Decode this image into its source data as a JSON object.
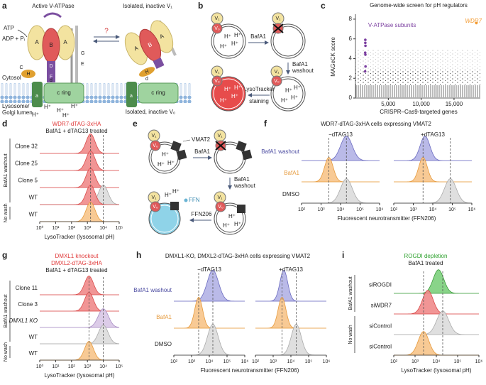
{
  "panels": {
    "a": {
      "label": "a",
      "title_active": "Active V-ATPase",
      "title_isolated": "Isolated, inactive V₁",
      "atp": "ATP",
      "adp": "ADP + Pᵢ",
      "question": "?",
      "subunits": [
        "A",
        "B",
        "A",
        "H",
        "D",
        "F",
        "C",
        "G",
        "E",
        "d",
        "a"
      ],
      "c_ring": "c ring",
      "cytosol": "Cytosol",
      "lumen": [
        "Lysosome/",
        "Golgi lumen"
      ],
      "proton": "H⁺",
      "isolated_v0": "Isolated, inactive V₀"
    },
    "b": {
      "label": "b",
      "v1": "V₁",
      "v0": "V₀",
      "proton": "H⁺",
      "step1": "BafA1",
      "step2": [
        "BafA1",
        "washout"
      ],
      "step3": [
        "LysoTracker",
        "staining"
      ]
    },
    "c": {
      "label": "c",
      "type": "scatter",
      "title": "Genome-wide screen for pH regulators",
      "ylabel": "MAGeCK score",
      "xlabel": "CRISPR–Cas9-targeted genes",
      "xlim": [
        0,
        19000
      ],
      "ylim": [
        0,
        8.5
      ],
      "yticks": [
        0,
        2,
        4,
        6,
        8
      ],
      "xticks": [
        {
          "value": 5000,
          "label": "5,000"
        },
        {
          "value": 10000,
          "label": "10,000"
        },
        {
          "value": 15000,
          "label": "15,000"
        }
      ],
      "series": [
        {
          "name": "V-ATPase subunits",
          "color": "#7b3fa0",
          "x": [
            1500,
            1500,
            1520,
            1480,
            1510,
            1530,
            1470
          ],
          "values": [
            5.9,
            5.6,
            5.3,
            4.6,
            4.4,
            3.2,
            2.7
          ]
        },
        {
          "name": "WDR7",
          "color": "#f39c34",
          "x": [
            18400
          ],
          "values": [
            7.6
          ]
        }
      ]
    },
    "d": {
      "label": "d",
      "title": [
        "WDR7-dTAG-3xHA",
        "BafA1 + dTAG13 treated"
      ],
      "rows": [
        "Clone 32",
        "Clone 25",
        "Clone 5",
        "WT",
        "WT"
      ],
      "groups": [
        "BafA1 washout",
        "No wash"
      ],
      "xlabel": "LysoTracker (lysosomal pH)",
      "xlim": [
        1,
        100000
      ],
      "xticks": [
        {
          "value": 1,
          "label": "10⁰"
        },
        {
          "value": 10,
          "label": "10¹"
        },
        {
          "value": 100,
          "label": "10²"
        },
        {
          "value": 1000,
          "label": "10³"
        },
        {
          "value": 10000,
          "label": "10⁴"
        },
        {
          "value": 100000,
          "label": "10⁵"
        }
      ]
    },
    "e": {
      "label": "e",
      "v1": "V₁",
      "v0": "V₀",
      "vmat2": "VMAT2",
      "step1": "BafA1",
      "step2": [
        "BafA1",
        "washout"
      ],
      "ffn206": "FFN206",
      "ffn": "FFN",
      "proton": "H⁺"
    },
    "f": {
      "label": "f",
      "title": "WDR7-dTAG-3xHA cells expressing VMAT2",
      "conditions": [
        "−dTAG13",
        "+dTAG13"
      ],
      "rows": [
        "BafA1 washout",
        "BafA1",
        "DMSO"
      ],
      "xlabel": "Fluorescent neurotransmitter (FFN206)",
      "xlim": [
        100,
        1000000
      ],
      "xticks": [
        {
          "value": 100,
          "label": "10²"
        },
        {
          "value": 1000,
          "label": "10³"
        },
        {
          "value": 10000,
          "label": "10⁴"
        },
        {
          "value": 100000,
          "label": "10⁵"
        },
        {
          "value": 1000000,
          "label": "10⁶"
        }
      ]
    },
    "g": {
      "label": "g",
      "title": [
        "DMXL1 knockout",
        "DMXL2-dTAG-3xHA",
        "BafA1 + dTAG13 treated"
      ],
      "rows": [
        "Clone 11",
        "Clone 3",
        "DMXL1 KO",
        "WT",
        "WT"
      ],
      "groups": [
        "BafA1 washout",
        "No wash"
      ],
      "xlabel": "LysoTracker (lysosomal pH)",
      "xlim": [
        1,
        100000
      ],
      "xticks": [
        {
          "value": 1,
          "label": "10⁰"
        },
        {
          "value": 10,
          "label": "10¹"
        },
        {
          "value": 100,
          "label": "10²"
        },
        {
          "value": 1000,
          "label": "10³"
        },
        {
          "value": 10000,
          "label": "10⁴"
        },
        {
          "value": 100000,
          "label": "10⁵"
        }
      ]
    },
    "h": {
      "label": "h",
      "title": "DMXL1-KO, DMXL2-dTAG-3xHA cells expressing VMAT2",
      "conditions": [
        "−dTAG13",
        "+dTAG13"
      ],
      "rows": [
        "BafA1 washout",
        "BafA1",
        "DMSO"
      ],
      "xlabel": "Fluorescent neurotransmitter (FFN206)",
      "xlim": [
        100,
        1000000
      ],
      "xticks": [
        {
          "value": 100,
          "label": "10²"
        },
        {
          "value": 1000,
          "label": "10³"
        },
        {
          "value": 10000,
          "label": "10⁴"
        },
        {
          "value": 100000,
          "label": "10⁵"
        },
        {
          "value": 1000000,
          "label": "10⁶"
        }
      ]
    },
    "i": {
      "label": "i",
      "title": [
        "ROGDI depletion",
        "BafA1 treated"
      ],
      "rows": [
        "siROGDI",
        "siWDR7",
        "siControl",
        "siControl"
      ],
      "groups": [
        "BafA1 washout",
        "No wash"
      ],
      "xlabel": "LysoTracker (lysosomal pH)",
      "xlim": [
        100,
        1000000
      ],
      "xticks": [
        {
          "value": 100,
          "label": "10²"
        },
        {
          "value": 1000,
          "label": "10³"
        },
        {
          "value": 10000,
          "label": "10⁴"
        },
        {
          "value": 100000,
          "label": "10⁵"
        },
        {
          "value": 1000000,
          "label": "10⁶"
        }
      ]
    }
  }
}
